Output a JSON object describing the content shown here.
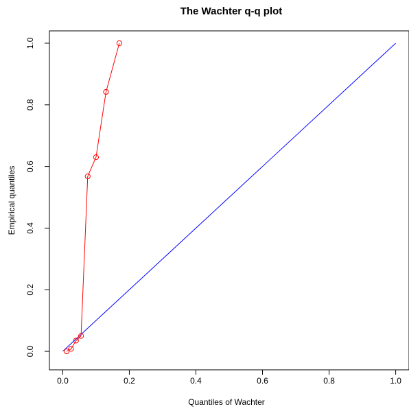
{
  "chart_data": {
    "type": "line",
    "title": "The Wachter q-q plot",
    "xlabel": "Quantiles of Wachter",
    "ylabel": "Empirical quantiles",
    "xlim": [
      -0.04,
      1.04
    ],
    "ylim": [
      -0.06,
      1.04
    ],
    "x_ticks": [
      0.0,
      0.2,
      0.4,
      0.6,
      0.8,
      1.0
    ],
    "y_ticks": [
      0.0,
      0.2,
      0.4,
      0.6,
      0.8,
      1.0
    ],
    "x_tick_labels": [
      "0.0",
      "0.2",
      "0.4",
      "0.6",
      "0.8",
      "1.0"
    ],
    "y_tick_labels": [
      "0.0",
      "0.2",
      "0.4",
      "0.6",
      "0.8",
      "1.0"
    ],
    "grid": false,
    "series": [
      {
        "style": "points-and-line",
        "color": "#ff0000",
        "x": [
          0.012,
          0.025,
          0.04,
          0.055,
          0.075,
          0.1,
          0.13,
          0.17
        ],
        "y": [
          0.0,
          0.008,
          0.035,
          0.05,
          0.568,
          0.63,
          0.842,
          1.0
        ]
      },
      {
        "style": "reference-line",
        "color": "#0000ff",
        "x": [
          0.0,
          1.0
        ],
        "y": [
          0.0,
          1.0
        ]
      }
    ]
  }
}
